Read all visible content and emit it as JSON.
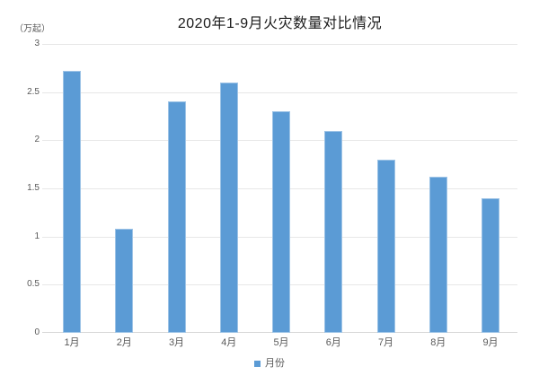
{
  "title": "2020年1-9月火灾数量对比情况",
  "unit_label": "（万起）",
  "legend": {
    "label": "月份"
  },
  "colors": {
    "bar": "#5b9bd5",
    "bar_edge": "#9dc3e6",
    "gridline": "#e7e7e7",
    "axis_line": "#d6d6d6",
    "tick_text": "#595959",
    "title_text": "#1a1a1a"
  },
  "chart_data": {
    "type": "bar",
    "title": "2020年1-9月火灾数量对比情况",
    "categories": [
      "1月",
      "2月",
      "3月",
      "4月",
      "5月",
      "6月",
      "7月",
      "8月",
      "9月"
    ],
    "values": [
      2.72,
      1.08,
      2.4,
      2.6,
      2.3,
      2.1,
      1.8,
      1.62,
      1.4
    ],
    "series_name": "月份",
    "xlabel": "",
    "ylabel": "（万起）",
    "ylim": [
      0,
      3
    ],
    "yticks": [
      0,
      0.5,
      1,
      1.5,
      2,
      2.5,
      3
    ],
    "ytick_labels": [
      "0",
      "0.5",
      "1",
      "1.5",
      "2",
      "2.5",
      "3"
    ],
    "grid": true,
    "legend_position": "bottom"
  }
}
